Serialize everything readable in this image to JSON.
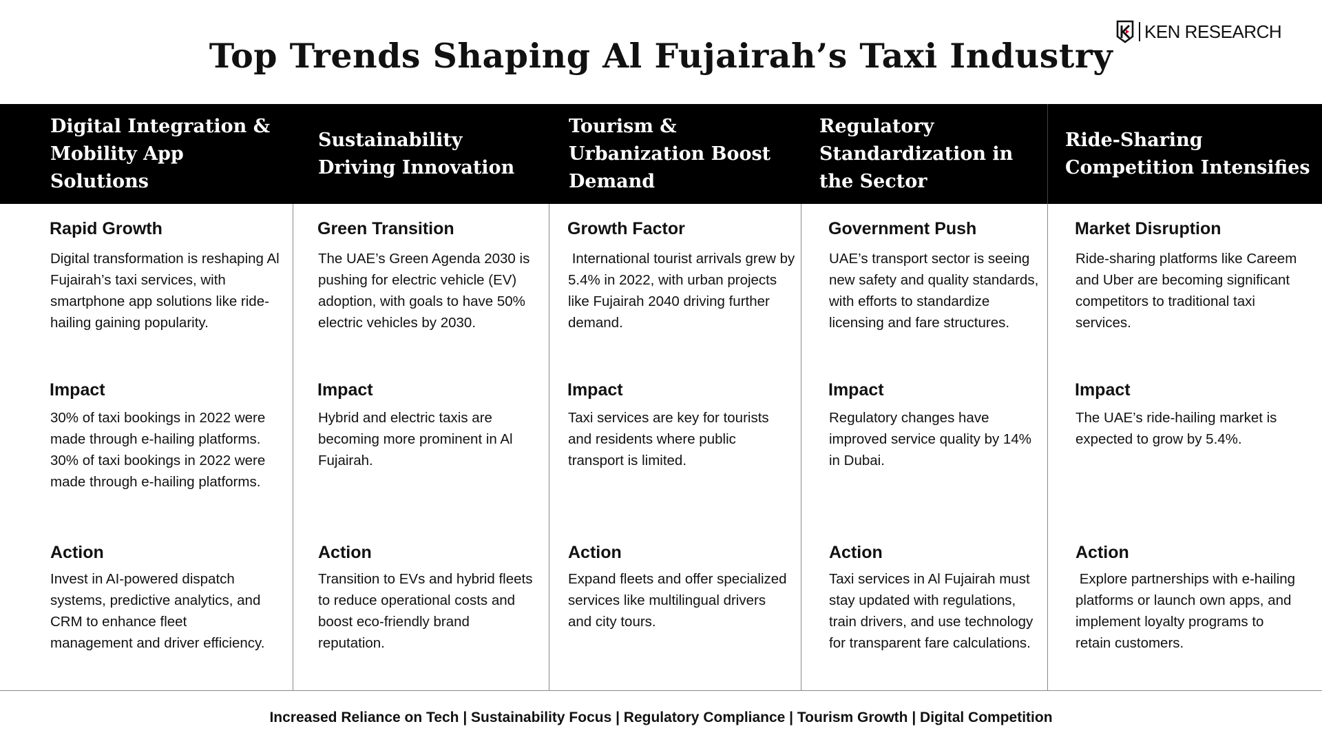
{
  "title": "Top Trends Shaping Al Fujairah’s Taxi Industry",
  "logo": {
    "text": "KEN RESEARCH",
    "icon": "ken-research-logo-icon"
  },
  "columns": [
    {
      "heading": "Digital Integration & Mobility App Solutions",
      "s1_title": "Rapid Growth",
      "s1_body": "Digital transformation is reshaping Al Fujairah’s taxi services, with smartphone app solutions like ride-hailing gaining popularity.",
      "s2_title": "Impact",
      "s2_body": "30% of taxi bookings in 2022 were made through e-hailing platforms. 30% of taxi bookings in 2022 were made through e-hailing platforms.",
      "s3_title": "Action",
      "s3_body": "Invest in AI-powered dispatch systems, predictive analytics, and CRM to enhance fleet management and driver efficiency."
    },
    {
      "heading": "Sustainability Driving Innovation",
      "s1_title": "Green Transition",
      "s1_body": "The UAE’s Green Agenda 2030 is pushing for electric vehicle (EV) adoption, with goals to have 50% electric vehicles by 2030.",
      "s2_title": "Impact",
      "s2_body": "Hybrid and electric taxis are becoming more prominent in Al Fujairah.",
      "s3_title": "Action",
      "s3_body": "Transition to EVs and hybrid fleets to reduce operational costs and boost eco-friendly brand reputation."
    },
    {
      "heading": "Tourism & Urbanization Boost Demand",
      "s1_title": "Growth Factor",
      "s1_body": " International tourist arrivals grew by 5.4% in 2022, with urban projects like Fujairah 2040 driving further demand.",
      "s2_title": "Impact",
      "s2_body": "Taxi services are key for tourists and residents where public transport is limited.",
      "s3_title": "Action",
      "s3_body": "Expand fleets and offer specialized services like multilingual drivers and city tours."
    },
    {
      "heading": "Regulatory Standardization in the Sector",
      "s1_title": "Government Push",
      "s1_body": "UAE’s transport sector is seeing new safety and quality standards, with efforts to standardize licensing and fare structures.",
      "s2_title": "Impact",
      "s2_body": "Regulatory changes have improved service quality by 14% in Dubai.",
      "s3_title": "Action",
      "s3_body": "Taxi services in Al Fujairah must stay updated with regulations, train drivers, and use technology for transparent fare calculations."
    },
    {
      "heading": "Ride-Sharing Competition Intensifies",
      "s1_title": "Market Disruption",
      "s1_body": "Ride-sharing platforms like Careem and Uber are becoming significant competitors to traditional taxi services.",
      "s2_title": "Impact",
      "s2_body": "The UAE’s ride-hailing market is expected to grow by 5.4%.",
      "s3_title": "Action",
      "s3_body": " Explore partnerships with e-hailing platforms or launch own apps, and implement loyalty programs to retain customers."
    }
  ],
  "footer": "Increased Reliance on Tech | Sustainability Focus | Regulatory Compliance | Tourism Growth | Digital Competition"
}
